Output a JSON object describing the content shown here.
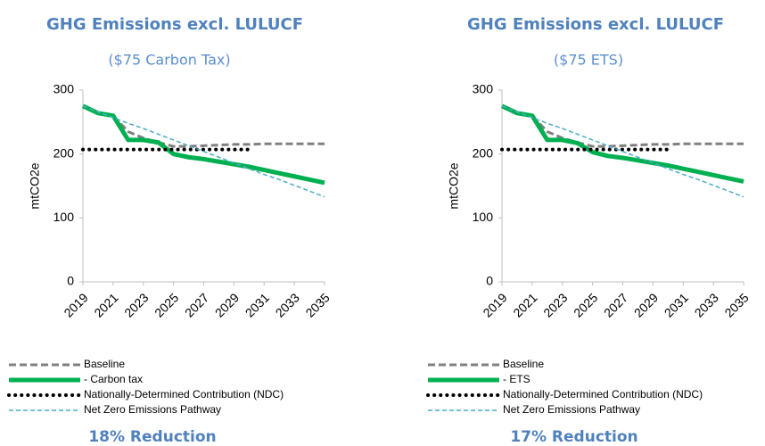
{
  "chart_data": [
    {
      "type": "line",
      "title": "GHG Emissions excl. LULUCF",
      "subtitle": "($75 Carbon Tax)",
      "y_label": "mtCO2e",
      "x": [
        2019,
        2020,
        2021,
        2022,
        2023,
        2024,
        2025,
        2026,
        2027,
        2028,
        2029,
        2030,
        2031,
        2032,
        2033,
        2034,
        2035
      ],
      "xlim": [
        2019,
        2035
      ],
      "xticks": [
        2019,
        2021,
        2023,
        2025,
        2027,
        2029,
        2031,
        2033,
        2035
      ],
      "ylim": [
        0,
        300
      ],
      "yticks": [
        0,
        100,
        200,
        300
      ],
      "series": [
        {
          "name": "Baseline",
          "color": "#808080",
          "dash": "dashed",
          "values": [
            275,
            264,
            260,
            235,
            225,
            218,
            212,
            212,
            213,
            214,
            215,
            215,
            216,
            216,
            216,
            216,
            216
          ]
        },
        {
          "name": "- Carbon tax",
          "color": "#00b050",
          "dash": "solid",
          "values": [
            275,
            264,
            260,
            222,
            222,
            218,
            200,
            195,
            192,
            188,
            184,
            180,
            175,
            170,
            165,
            160,
            155
          ]
        },
        {
          "name": "Nationally-Determined Contribution (NDC)",
          "color": "#000000",
          "dash": "dotted",
          "values": [
            207,
            207,
            207,
            207,
            207,
            207,
            207,
            207,
            207,
            207,
            207,
            207,
            null,
            null,
            null,
            null,
            null
          ]
        },
        {
          "name": "Net Zero Emissions Pathway",
          "color": "#4bacc6",
          "dash": "thin-dashed",
          "values": [
            275,
            266,
            257,
            248,
            240,
            231,
            222,
            213,
            204,
            195,
            186,
            177,
            168,
            160,
            151,
            142,
            133
          ]
        }
      ],
      "annotation": "18% Reduction"
    },
    {
      "type": "line",
      "title": "GHG Emissions excl. LULUCF",
      "subtitle": "($75 ETS)",
      "y_label": "mtCO2e",
      "x": [
        2019,
        2020,
        2021,
        2022,
        2023,
        2024,
        2025,
        2026,
        2027,
        2028,
        2029,
        2030,
        2031,
        2032,
        2033,
        2034,
        2035
      ],
      "xlim": [
        2019,
        2035
      ],
      "xticks": [
        2019,
        2021,
        2023,
        2025,
        2027,
        2029,
        2031,
        2033,
        2035
      ],
      "ylim": [
        0,
        300
      ],
      "yticks": [
        0,
        100,
        200,
        300
      ],
      "series": [
        {
          "name": "Baseline",
          "color": "#808080",
          "dash": "dashed",
          "values": [
            275,
            264,
            260,
            235,
            225,
            218,
            212,
            212,
            213,
            214,
            215,
            215,
            216,
            216,
            216,
            216,
            216
          ]
        },
        {
          "name": "- ETS",
          "color": "#00b050",
          "dash": "solid",
          "values": [
            275,
            264,
            260,
            222,
            222,
            217,
            203,
            197,
            194,
            190,
            186,
            182,
            177,
            172,
            167,
            162,
            157
          ]
        },
        {
          "name": "Nationally-Determined Contribution (NDC)",
          "color": "#000000",
          "dash": "dotted",
          "values": [
            207,
            207,
            207,
            207,
            207,
            207,
            207,
            207,
            207,
            207,
            207,
            207,
            null,
            null,
            null,
            null,
            null
          ]
        },
        {
          "name": "Net Zero Emissions Pathway",
          "color": "#4bacc6",
          "dash": "thin-dashed",
          "values": [
            275,
            266,
            257,
            248,
            240,
            231,
            222,
            213,
            204,
            195,
            186,
            177,
            168,
            160,
            151,
            142,
            133
          ]
        }
      ],
      "annotation": "17% Reduction"
    }
  ]
}
